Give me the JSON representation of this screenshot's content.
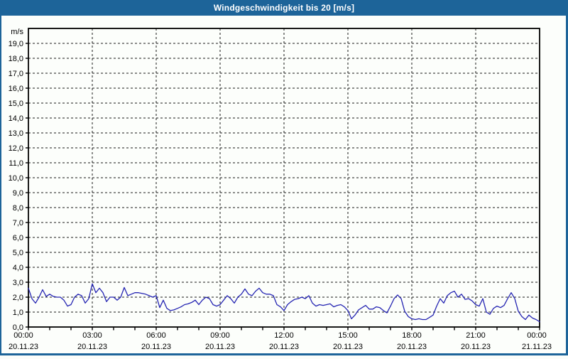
{
  "window": {
    "title": "Windgeschwindigkeit bis 20 [m/s]"
  },
  "colors": {
    "titlebar_bg": "#1d6499",
    "titlebar_text": "#ffffff",
    "outer_border": "#1d6499",
    "background": "#fcfefb",
    "plot_frame": "#000000",
    "grid": "#1a1a1a",
    "series_line": "#2525b2",
    "tick_text": "#000000"
  },
  "chart_data": {
    "type": "line",
    "title": "Windgeschwindigkeit bis 20 [m/s]",
    "ylabel": "m/s",
    "xlabel": "",
    "ylim": [
      0,
      20
    ],
    "ytick_step": 1.0,
    "ytick_labels": [
      "0,0",
      "1,0",
      "2,0",
      "3,0",
      "4,0",
      "5,0",
      "6,0",
      "7,0",
      "8,0",
      "9,0",
      "10,0",
      "11,0",
      "12,0",
      "13,0",
      "14,0",
      "15,0",
      "16,0",
      "17,0",
      "18,0",
      "19,0"
    ],
    "x_range_minutes": [
      0,
      1440
    ],
    "x_major_ticks": [
      {
        "minute": 0,
        "time": "00:00",
        "date": "20.11.23"
      },
      {
        "minute": 180,
        "time": "03:00",
        "date": "20.11.23"
      },
      {
        "minute": 360,
        "time": "06:00",
        "date": "20.11.23"
      },
      {
        "minute": 540,
        "time": "09:00",
        "date": "20.11.23"
      },
      {
        "minute": 720,
        "time": "12:00",
        "date": "20.11.23"
      },
      {
        "minute": 900,
        "time": "15:00",
        "date": "20.11.23"
      },
      {
        "minute": 1080,
        "time": "18:00",
        "date": "20.11.23"
      },
      {
        "minute": 1260,
        "time": "21:00",
        "date": "20.11.23"
      },
      {
        "minute": 1440,
        "time": "00:00",
        "date": "21.11.23"
      }
    ],
    "x_minor_tick_minutes": 60,
    "grid": "dashed",
    "legend_position": "none",
    "series": [
      {
        "name": "Windgeschwindigkeit",
        "unit": "m/s",
        "x_start_minute": 0,
        "x_step_minutes": 10,
        "values": [
          2.6,
          1.9,
          1.6,
          2.0,
          2.5,
          2.05,
          2.2,
          2.05,
          2.0,
          2.0,
          1.8,
          1.4,
          1.5,
          2.0,
          2.2,
          2.1,
          1.6,
          1.9,
          2.9,
          2.3,
          2.6,
          2.3,
          1.7,
          2.0,
          2.0,
          1.8,
          2.0,
          2.65,
          2.1,
          2.2,
          2.3,
          2.3,
          2.25,
          2.2,
          2.1,
          2.0,
          2.1,
          1.3,
          1.8,
          1.25,
          1.1,
          1.15,
          1.25,
          1.35,
          1.5,
          1.55,
          1.65,
          1.8,
          1.5,
          1.8,
          2.0,
          1.9,
          1.5,
          1.4,
          1.5,
          1.8,
          2.1,
          1.9,
          1.6,
          2.0,
          2.2,
          2.55,
          2.2,
          2.1,
          2.4,
          2.6,
          2.3,
          2.2,
          2.2,
          2.1,
          1.5,
          1.35,
          1.1,
          1.5,
          1.7,
          1.85,
          1.9,
          2.0,
          1.9,
          2.1,
          1.6,
          1.4,
          1.5,
          1.45,
          1.5,
          1.55,
          1.35,
          1.45,
          1.5,
          1.35,
          1.1,
          0.55,
          0.8,
          1.15,
          1.3,
          1.45,
          1.2,
          1.2,
          1.35,
          1.3,
          1.1,
          0.95,
          1.4,
          1.9,
          2.15,
          1.9,
          1.05,
          0.7,
          0.55,
          0.5,
          0.55,
          0.5,
          0.5,
          0.65,
          0.8,
          1.4,
          1.9,
          1.6,
          2.1,
          2.3,
          2.4,
          2.0,
          2.2,
          1.85,
          1.9,
          1.75,
          1.5,
          1.4,
          1.9,
          1.0,
          0.85,
          1.25,
          1.4,
          1.3,
          1.45,
          1.9,
          2.3,
          1.9,
          1.05,
          0.7,
          0.5,
          0.8,
          0.6,
          0.5,
          0.35
        ]
      }
    ]
  }
}
